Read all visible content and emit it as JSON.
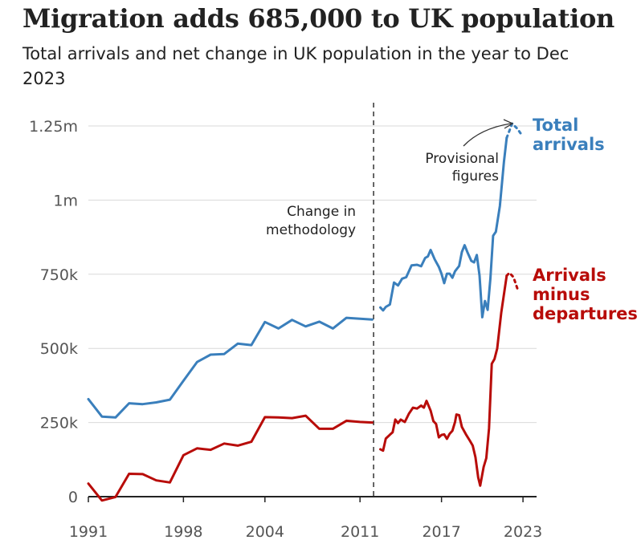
{
  "header": {
    "title": "Migration adds 685,000 to UK population",
    "subtitle": "Total arrivals and net change in UK population in the year to Dec 2023"
  },
  "colors": {
    "total": "#3a7fbc",
    "net": "#b80c09",
    "grid": "#d9d9d9",
    "zero": "#222222",
    "divider": "#333333"
  },
  "chart_data": {
    "type": "line",
    "title": "Migration adds 685,000 to UK population",
    "subtitle": "Total arrivals and net change in UK population in the year to Dec 2023",
    "ylim": [
      0,
      1250000
    ],
    "xlim": [
      1991,
      2024
    ],
    "y_ticks": [
      {
        "value": 0,
        "label": "0"
      },
      {
        "value": 250000,
        "label": "250k"
      },
      {
        "value": 500000,
        "label": "500k"
      },
      {
        "value": 750000,
        "label": "750k"
      },
      {
        "value": 1000000,
        "label": "1m"
      },
      {
        "value": 1250000,
        "label": "1.25m"
      }
    ],
    "x_ticks": [
      {
        "value": 1991,
        "label": "1991"
      },
      {
        "value": 1998,
        "label": "1998"
      },
      {
        "value": 2004,
        "label": "2004"
      },
      {
        "value": 2011,
        "label": "2011"
      },
      {
        "value": 2017,
        "label": "2017"
      },
      {
        "value": 2023,
        "label": "2023"
      }
    ],
    "grid": true,
    "methodology_change": {
      "x": 2012.0,
      "label": [
        "Change in",
        "methodology"
      ]
    },
    "provisional_label": [
      "Provisional",
      "figures"
    ],
    "series": [
      {
        "name": "Total arrivals",
        "label_lines": [
          "Total",
          "arrivals"
        ],
        "color": "#3a7fbc",
        "segments": [
          [
            [
              1991,
              329000
            ],
            [
              1992,
              270000
            ],
            [
              1993,
              267000
            ],
            [
              1994,
              315000
            ],
            [
              1995,
              312000
            ],
            [
              1996,
              318000
            ],
            [
              1997,
              327000
            ],
            [
              1998,
              391000
            ],
            [
              1999,
              454000
            ],
            [
              2000,
              479000
            ],
            [
              2001,
              481000
            ],
            [
              2002,
              516000
            ],
            [
              2003,
              511000
            ],
            [
              2004,
              589000
            ],
            [
              2005,
              567000
            ],
            [
              2006,
              596000
            ],
            [
              2007,
              574000
            ],
            [
              2008,
              590000
            ],
            [
              2009,
              567000
            ],
            [
              2010,
              603000
            ],
            [
              2011,
              600000
            ],
            [
              2011.9,
              597000
            ]
          ],
          [
            [
              2012.5,
              638000
            ],
            [
              2012.7,
              628000
            ],
            [
              2012.9,
              640000
            ],
            [
              2013.2,
              648000
            ],
            [
              2013.5,
              722000
            ],
            [
              2013.8,
              712000
            ],
            [
              2014.1,
              735000
            ],
            [
              2014.4,
              740000
            ],
            [
              2014.8,
              780000
            ],
            [
              2015.2,
              782000
            ],
            [
              2015.5,
              777000
            ],
            [
              2015.8,
              805000
            ],
            [
              2016.0,
              810000
            ],
            [
              2016.2,
              832000
            ],
            [
              2016.5,
              800000
            ],
            [
              2016.8,
              775000
            ],
            [
              2017.0,
              752000
            ],
            [
              2017.2,
              720000
            ],
            [
              2017.4,
              752000
            ],
            [
              2017.6,
              752000
            ],
            [
              2017.8,
              738000
            ],
            [
              2018.0,
              760000
            ],
            [
              2018.3,
              778000
            ],
            [
              2018.5,
              825000
            ],
            [
              2018.7,
              848000
            ],
            [
              2018.9,
              825000
            ],
            [
              2019.2,
              795000
            ],
            [
              2019.4,
              790000
            ],
            [
              2019.6,
              815000
            ],
            [
              2019.8,
              745000
            ],
            [
              2020.0,
              605000
            ],
            [
              2020.2,
              660000
            ],
            [
              2020.4,
              630000
            ],
            [
              2020.6,
              735000
            ],
            [
              2020.8,
              880000
            ],
            [
              2021.0,
              893000
            ],
            [
              2021.3,
              980000
            ],
            [
              2021.6,
              1130000
            ],
            [
              2021.8,
              1210000
            ]
          ],
          [
            [
              2021.8,
              1210000
            ],
            [
              2022.2,
              1258000
            ],
            [
              2022.6,
              1240000
            ],
            [
              2022.9,
              1220000
            ]
          ]
        ]
      },
      {
        "name": "Arrivals minus departures",
        "label_lines": [
          "Arrivals",
          "minus",
          "departures"
        ],
        "color": "#b80c09",
        "segments": [
          [
            [
              1991,
              44000
            ],
            [
              1992,
              -13000
            ],
            [
              1993,
              -1000
            ],
            [
              1994,
              77000
            ],
            [
              1995,
              76000
            ],
            [
              1996,
              55000
            ],
            [
              1997,
              48000
            ],
            [
              1998,
              140000
            ],
            [
              1999,
              163000
            ],
            [
              2000,
              158000
            ],
            [
              2001,
              179000
            ],
            [
              2002,
              172000
            ],
            [
              2003,
              185000
            ],
            [
              2004,
              268000
            ],
            [
              2005,
              267000
            ],
            [
              2006,
              265000
            ],
            [
              2007,
              273000
            ],
            [
              2008,
              229000
            ],
            [
              2009,
              229000
            ],
            [
              2010,
              256000
            ],
            [
              2011,
              252000
            ],
            [
              2011.9,
              250000
            ]
          ],
          [
            [
              2012.5,
              160000
            ],
            [
              2012.7,
              155000
            ],
            [
              2012.9,
              196000
            ],
            [
              2013.2,
              209000
            ],
            [
              2013.4,
              217000
            ],
            [
              2013.6,
              260000
            ],
            [
              2013.8,
              248000
            ],
            [
              2014.0,
              260000
            ],
            [
              2014.3,
              252000
            ],
            [
              2014.6,
              280000
            ],
            [
              2014.9,
              300000
            ],
            [
              2015.2,
              297000
            ],
            [
              2015.5,
              307000
            ],
            [
              2015.7,
              300000
            ],
            [
              2015.9,
              323000
            ],
            [
              2016.2,
              290000
            ],
            [
              2016.4,
              255000
            ],
            [
              2016.6,
              245000
            ],
            [
              2016.8,
              200000
            ],
            [
              2017.0,
              208000
            ],
            [
              2017.2,
              210000
            ],
            [
              2017.4,
              195000
            ],
            [
              2017.6,
              212000
            ],
            [
              2017.8,
              222000
            ],
            [
              2018.0,
              252000
            ],
            [
              2018.1,
              277000
            ],
            [
              2018.3,
              275000
            ],
            [
              2018.5,
              235000
            ],
            [
              2018.8,
              210000
            ],
            [
              2019.1,
              188000
            ],
            [
              2019.3,
              172000
            ],
            [
              2019.5,
              133000
            ],
            [
              2019.7,
              65000
            ],
            [
              2019.85,
              37000
            ],
            [
              2020.1,
              100000
            ],
            [
              2020.3,
              130000
            ],
            [
              2020.5,
              230000
            ],
            [
              2020.7,
              448000
            ],
            [
              2020.9,
              464000
            ],
            [
              2021.1,
              500000
            ],
            [
              2021.4,
              620000
            ],
            [
              2021.8,
              745000
            ]
          ],
          [
            [
              2021.8,
              745000
            ],
            [
              2022.0,
              755000
            ],
            [
              2022.3,
              740000
            ],
            [
              2022.6,
              700000
            ]
          ]
        ]
      }
    ]
  }
}
